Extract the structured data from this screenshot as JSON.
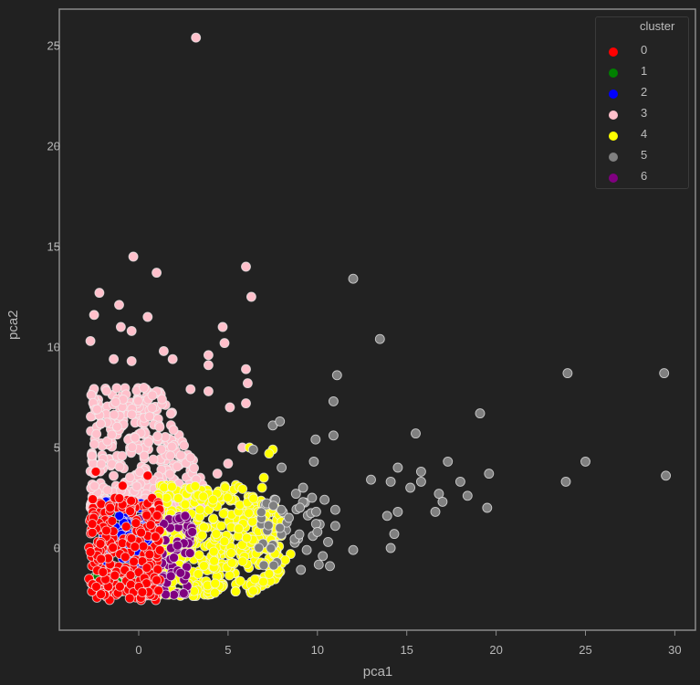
{
  "chart_data": {
    "type": "scatter",
    "title": "",
    "xlabel": "pca1",
    "ylabel": "pca2",
    "xlim": [
      -4.5,
      31.2
    ],
    "ylim": [
      -4.0,
      27.0
    ],
    "xticks": [
      0,
      5,
      10,
      15,
      20,
      25,
      30
    ],
    "yticks": [
      0,
      5,
      10,
      15,
      20,
      25
    ],
    "grid": false,
    "legend": {
      "title": "cluster",
      "position": "upper right",
      "entries": [
        {
          "label": "0",
          "color": "#ff0000"
        },
        {
          "label": "1",
          "color": "#008000"
        },
        {
          "label": "2",
          "color": "#0000ff"
        },
        {
          "label": "3",
          "color": "#ffc0cb"
        },
        {
          "label": "4",
          "color": "#ffff00"
        },
        {
          "label": "5",
          "color": "#808080"
        },
        {
          "label": "6",
          "color": "#800080"
        }
      ]
    },
    "series": [
      {
        "name": "0",
        "color": "#ff0000",
        "dense_region": {
          "x": [
            -2.8,
            1.2
          ],
          "y": [
            -2.6,
            2.5
          ],
          "count": 260
        },
        "points": [
          [
            -2.4,
            3.8
          ],
          [
            -0.9,
            3.1
          ],
          [
            0.5,
            3.6
          ],
          [
            -2.6,
            1.2
          ],
          [
            -2.7,
            -0.2
          ],
          [
            -2.0,
            -1.2
          ],
          [
            -0.5,
            -2.5
          ],
          [
            0.2,
            -2.2
          ],
          [
            1.0,
            -1.6
          ],
          [
            -1.6,
            2.0
          ]
        ]
      },
      {
        "name": "1",
        "color": "#008000",
        "dense_region": {
          "x": [
            -2.6,
            0.0
          ],
          "y": [
            -2.4,
            -1.2
          ],
          "count": 30
        },
        "points": [
          [
            -2.3,
            -1.4
          ],
          [
            -1.8,
            -1.9
          ],
          [
            -1.2,
            -2.1
          ],
          [
            -1.5,
            -2.3
          ]
        ]
      },
      {
        "name": "2",
        "color": "#0000ff",
        "dense_region": {
          "x": [
            -2.0,
            0.8
          ],
          "y": [
            -0.8,
            2.4
          ],
          "count": 90
        },
        "points": [
          [
            -1.3,
            2.3
          ],
          [
            -0.3,
            1.9
          ],
          [
            0.5,
            0.8
          ]
        ]
      },
      {
        "name": "3",
        "color": "#ffc0cb",
        "dense_region": {
          "x": [
            -2.7,
            4.5
          ],
          "y": [
            2.0,
            8.0
          ],
          "count": 420
        },
        "points": [
          [
            3.2,
            25.4
          ],
          [
            -0.3,
            14.5
          ],
          [
            1.0,
            13.7
          ],
          [
            6.0,
            14.0
          ],
          [
            6.3,
            12.5
          ],
          [
            -2.2,
            12.7
          ],
          [
            -2.5,
            11.6
          ],
          [
            -1.1,
            12.1
          ],
          [
            0.5,
            11.5
          ],
          [
            -1.0,
            11.0
          ],
          [
            -0.4,
            10.8
          ],
          [
            -2.7,
            10.3
          ],
          [
            4.7,
            11.0
          ],
          [
            4.8,
            10.2
          ],
          [
            3.9,
            9.6
          ],
          [
            3.9,
            9.1
          ],
          [
            1.4,
            9.8
          ],
          [
            1.9,
            9.4
          ],
          [
            6.0,
            8.9
          ],
          [
            6.1,
            8.2
          ],
          [
            -1.4,
            9.4
          ],
          [
            -0.4,
            9.3
          ],
          [
            2.9,
            7.9
          ],
          [
            3.9,
            7.8
          ],
          [
            5.1,
            7.0
          ],
          [
            6.0,
            7.2
          ],
          [
            5.8,
            5.0
          ],
          [
            5.0,
            4.2
          ],
          [
            4.4,
            3.7
          ]
        ]
      },
      {
        "name": "4",
        "color": "#ffff00",
        "dense_region": {
          "x": [
            1.0,
            8.0
          ],
          "y": [
            -2.4,
            3.2
          ],
          "count": 520
        },
        "points": [
          [
            7.5,
            4.9
          ],
          [
            6.2,
            5.0
          ],
          [
            7.3,
            4.7
          ],
          [
            7.0,
            3.5
          ],
          [
            6.9,
            3.0
          ],
          [
            7.6,
            2.1
          ],
          [
            8.0,
            1.3
          ],
          [
            8.5,
            -0.3
          ],
          [
            8.2,
            -0.6
          ]
        ]
      },
      {
        "name": "5",
        "color": "#808080",
        "dense_region": {
          "x": [
            6.5,
            10.5
          ],
          "y": [
            -1.2,
            2.5
          ],
          "count": 40
        },
        "points": [
          [
            12.0,
            13.4
          ],
          [
            13.5,
            10.4
          ],
          [
            11.1,
            8.6
          ],
          [
            10.9,
            7.3
          ],
          [
            10.9,
            5.6
          ],
          [
            15.5,
            5.7
          ],
          [
            19.1,
            6.7
          ],
          [
            24.0,
            8.7
          ],
          [
            29.4,
            8.7
          ],
          [
            25.0,
            4.3
          ],
          [
            23.9,
            3.3
          ],
          [
            29.5,
            3.6
          ],
          [
            19.6,
            3.7
          ],
          [
            19.5,
            2.0
          ],
          [
            17.3,
            4.3
          ],
          [
            18.0,
            3.3
          ],
          [
            18.4,
            2.6
          ],
          [
            16.8,
            2.7
          ],
          [
            17.0,
            2.3
          ],
          [
            16.6,
            1.8
          ],
          [
            15.8,
            3.8
          ],
          [
            15.8,
            3.3
          ],
          [
            15.2,
            3.0
          ],
          [
            14.5,
            4.0
          ],
          [
            14.1,
            3.3
          ],
          [
            13.0,
            3.4
          ],
          [
            14.5,
            1.8
          ],
          [
            13.9,
            1.6
          ],
          [
            14.3,
            0.7
          ],
          [
            14.1,
            0.0
          ],
          [
            12.0,
            -0.1
          ],
          [
            10.7,
            -0.9
          ],
          [
            11.0,
            1.1
          ],
          [
            11.0,
            1.9
          ],
          [
            10.4,
            2.4
          ],
          [
            9.8,
            4.3
          ],
          [
            9.9,
            5.4
          ],
          [
            7.5,
            6.1
          ],
          [
            7.9,
            6.3
          ],
          [
            6.4,
            4.9
          ],
          [
            8.0,
            4.0
          ],
          [
            9.2,
            3.0
          ],
          [
            8.8,
            2.7
          ],
          [
            9.7,
            2.5
          ],
          [
            8.4,
            1.5
          ],
          [
            7.9,
            1.0
          ],
          [
            10.0,
            0.8
          ],
          [
            10.6,
            0.3
          ],
          [
            10.3,
            -0.4
          ],
          [
            9.4,
            -0.1
          ]
        ]
      },
      {
        "name": "6",
        "color": "#800080",
        "dense_region": {
          "x": [
            -0.5,
            3.0
          ],
          "y": [
            -2.4,
            1.6
          ],
          "count": 110
        },
        "points": [
          [
            1.4,
            1.2
          ],
          [
            2.6,
            1.6
          ],
          [
            3.0,
            0.8
          ],
          [
            1.8,
            -1.4
          ]
        ]
      }
    ]
  },
  "style": {
    "background": "#212121",
    "frame_color": "#8a8a8a",
    "marker_edge": "#f0f0f0",
    "marker_radius": 5
  }
}
